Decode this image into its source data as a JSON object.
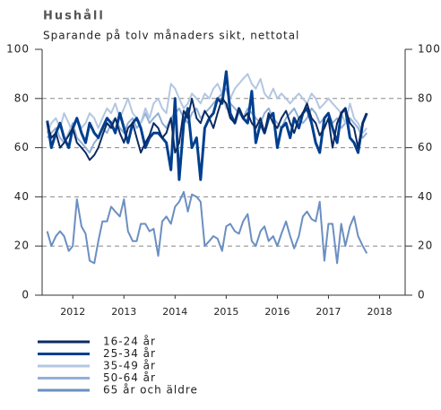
{
  "chart_data": {
    "type": "line",
    "title": "Hushåll",
    "subtitle": "Sparande på tolv månaders sikt, nettotal",
    "x": [
      2012.0,
      2012.08,
      2012.17,
      2012.25,
      2012.33,
      2012.42,
      2012.5,
      2012.58,
      2012.67,
      2012.75,
      2012.83,
      2012.92,
      2013.0,
      2013.08,
      2013.17,
      2013.25,
      2013.33,
      2013.42,
      2013.5,
      2013.58,
      2013.67,
      2013.75,
      2013.83,
      2013.92,
      2014.0,
      2014.08,
      2014.17,
      2014.25,
      2014.33,
      2014.42,
      2014.5,
      2014.58,
      2014.67,
      2014.75,
      2014.83,
      2014.92,
      2015.0,
      2015.08,
      2015.17,
      2015.25,
      2015.33,
      2015.42,
      2015.5,
      2015.58,
      2015.67,
      2015.75,
      2015.83,
      2015.92,
      2016.0,
      2016.08,
      2016.17,
      2016.25,
      2016.33,
      2016.42,
      2016.5,
      2016.58,
      2016.67,
      2016.75,
      2016.83,
      2016.92,
      2017.0,
      2017.08,
      2017.17,
      2017.25,
      2017.33,
      2017.42,
      2017.5,
      2017.58,
      2017.67,
      2017.75,
      2017.83,
      2017.92,
      2018.0,
      2018.08,
      2018.17,
      2018.25
    ],
    "xlim": [
      2011.9,
      2019.0
    ],
    "xticks": [
      {
        "value": 2012.5,
        "label": "2012"
      },
      {
        "value": 2013.5,
        "label": "2013"
      },
      {
        "value": 2014.5,
        "label": "2014"
      },
      {
        "value": 2015.5,
        "label": "2015"
      },
      {
        "value": 2016.5,
        "label": "2016"
      },
      {
        "value": 2017.5,
        "label": "2017"
      },
      {
        "value": 2018.5,
        "label": "2018"
      }
    ],
    "ylim": [
      0,
      100
    ],
    "yticks": [
      0,
      20,
      40,
      60,
      80,
      100
    ],
    "grid": true,
    "series": [
      {
        "name": "16-24 år",
        "color": "#0b2b63",
        "values": [
          70,
          64,
          66,
          60,
          62,
          65,
          68,
          62,
          60,
          58,
          55,
          57,
          60,
          65,
          70,
          68,
          72,
          66,
          62,
          68,
          70,
          64,
          58,
          62,
          65,
          70,
          68,
          64,
          66,
          72,
          58,
          62,
          75,
          72,
          80,
          72,
          70,
          75,
          72,
          68,
          74,
          80,
          78,
          72,
          70,
          76,
          72,
          74,
          70,
          68,
          72,
          66,
          74,
          70,
          68,
          72,
          75,
          70,
          66,
          72,
          74,
          78,
          72,
          70,
          65,
          68,
          72,
          60,
          70,
          74,
          76,
          70,
          68,
          60,
          70,
          74
        ]
      },
      {
        "name": "25-34 år",
        "color": "#003f8f",
        "values": [
          71,
          60,
          66,
          70,
          64,
          60,
          68,
          72,
          66,
          62,
          70,
          66,
          64,
          68,
          72,
          70,
          66,
          74,
          68,
          62,
          70,
          72,
          68,
          60,
          64,
          66,
          66,
          64,
          62,
          51,
          80,
          47,
          70,
          76,
          60,
          64,
          47,
          68,
          72,
          74,
          80,
          78,
          91,
          74,
          70,
          76,
          72,
          70,
          83,
          62,
          70,
          66,
          72,
          74,
          60,
          68,
          70,
          64,
          72,
          68,
          74,
          76,
          70,
          62,
          58,
          72,
          74,
          68,
          62,
          74,
          76,
          64,
          62,
          58,
          70,
          74
        ]
      },
      {
        "name": "35-49 år",
        "color": "#b3c7e2",
        "values": [
          66,
          70,
          72,
          68,
          74,
          70,
          66,
          72,
          68,
          70,
          74,
          72,
          68,
          72,
          76,
          74,
          78,
          72,
          76,
          80,
          74,
          72,
          70,
          76,
          72,
          78,
          80,
          76,
          74,
          86,
          84,
          80,
          76,
          78,
          82,
          80,
          78,
          82,
          80,
          84,
          86,
          82,
          76,
          80,
          84,
          86,
          88,
          90,
          86,
          84,
          88,
          82,
          80,
          84,
          80,
          82,
          80,
          78,
          80,
          82,
          80,
          78,
          82,
          80,
          76,
          78,
          80,
          78,
          76,
          74,
          70,
          78,
          72,
          70,
          66,
          68
        ]
      },
      {
        "name": "50-64 år",
        "color": "#93afd6",
        "values": [
          64,
          66,
          68,
          64,
          62,
          66,
          70,
          64,
          62,
          60,
          58,
          62,
          64,
          68,
          66,
          70,
          72,
          68,
          66,
          70,
          72,
          68,
          70,
          74,
          70,
          72,
          74,
          70,
          68,
          72,
          74,
          76,
          72,
          70,
          74,
          76,
          72,
          74,
          76,
          78,
          80,
          82,
          84,
          78,
          76,
          74,
          72,
          76,
          74,
          72,
          70,
          74,
          76,
          72,
          70,
          68,
          72,
          74,
          76,
          72,
          70,
          72,
          76,
          74,
          70,
          72,
          74,
          70,
          72,
          68,
          70,
          72,
          70,
          68,
          64,
          66
        ]
      },
      {
        "name": "65 år och äldre",
        "color": "#6b8fc2",
        "values": [
          26,
          20,
          24,
          26,
          24,
          18,
          20,
          39,
          28,
          25,
          14,
          13,
          22,
          30,
          30,
          36,
          34,
          32,
          39,
          26,
          22,
          22,
          29,
          29,
          26,
          27,
          16,
          30,
          32,
          29,
          36,
          38,
          42,
          34,
          41,
          40,
          38,
          20,
          22,
          24,
          23,
          18,
          28,
          29,
          26,
          25,
          30,
          33,
          22,
          20,
          26,
          28,
          22,
          24,
          20,
          25,
          30,
          24,
          19,
          24,
          32,
          34,
          31,
          30,
          38,
          14,
          29,
          29,
          13,
          29,
          20,
          28,
          32,
          24,
          20,
          17
        ]
      }
    ]
  }
}
